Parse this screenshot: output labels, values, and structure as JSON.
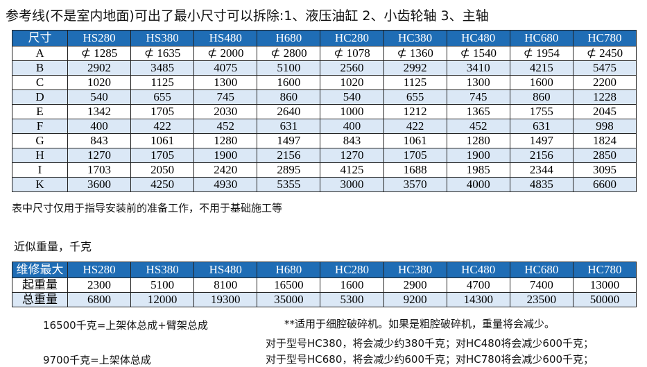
{
  "title": "参考线(不是室内地面)可出了最小尺寸可以拆除:1、液压油缸 2、小齿轮轴 3、主轴",
  "table1": {
    "header": [
      "尺寸",
      "HS280",
      "HS380",
      "HS480",
      "H680",
      "HC280",
      "HC380",
      "HC480",
      "HC680",
      "HC780"
    ],
    "rows": [
      [
        "A",
        "⊄ 1285",
        "⊄ 1635",
        "⊄ 2000",
        "⊄ 2800",
        "⊄ 1078",
        "⊄ 1360",
        "⊄ 1540",
        "⊄ 1954",
        "⊄ 2450"
      ],
      [
        "B",
        "2902",
        "3485",
        "4075",
        "5100",
        "2560",
        "2992",
        "3410",
        "4215",
        "5475"
      ],
      [
        "C",
        "1020",
        "1125",
        "1300",
        "1600",
        "1020",
        "1125",
        "1300",
        "1600",
        "2200"
      ],
      [
        "D",
        "540",
        "655",
        "745",
        "860",
        "540",
        "655",
        "745",
        "860",
        "1228"
      ],
      [
        "E",
        "1342",
        "1705",
        "2030",
        "2640",
        "1000",
        "1212",
        "1365",
        "1755",
        "2045"
      ],
      [
        "F",
        "400",
        "422",
        "452",
        "631",
        "400",
        "422",
        "452",
        "631",
        "998"
      ],
      [
        "G",
        "843",
        "1061",
        "1280",
        "1497",
        "843",
        "1061",
        "1280",
        "1497",
        "1824"
      ],
      [
        "H",
        "1270",
        "1705",
        "1900",
        "2156",
        "1270",
        "1705",
        "1900",
        "2156",
        "2850"
      ],
      [
        "I",
        "1703",
        "2050",
        "2420",
        "2895",
        "4125",
        "1688",
        "1985",
        "2344",
        "3095"
      ],
      [
        "K",
        "3600",
        "4250",
        "4930",
        "5355",
        "3000",
        "3570",
        "4000",
        "4835",
        "6600"
      ]
    ]
  },
  "note": "表中尺寸仅用于指导安装前的准备工作，不用于基础施工等",
  "weight_title": "近似重量，千克",
  "table2": {
    "header": [
      "维修最大",
      "HS280",
      "HS380",
      "HS480",
      "H680",
      "HC280",
      "HC380",
      "HC480",
      "HC680",
      "HC780"
    ],
    "rows": [
      [
        "起重量",
        "2300",
        "5100",
        "8100",
        "16500",
        "1600",
        "2900",
        "4700",
        "7400",
        "13000"
      ],
      [
        "总重量",
        "6800",
        "12000",
        "19300",
        "35000",
        "5300",
        "9200",
        "14300",
        "23500",
        "50000"
      ]
    ]
  },
  "footnotes": {
    "left1": "16500千克=上架体总成+臂架总成",
    "left2": "9700千克=上架体总成",
    "right1": "**适用于细腔破碎机。如果是粗腔破碎机，重量将会减少。",
    "right2": "对于型号HC380，将会减少约380千克；对HC480将会减少600千克；",
    "right3": "对于型号HC680，将会减少约600千克；对HC780将会减少600千克；"
  }
}
